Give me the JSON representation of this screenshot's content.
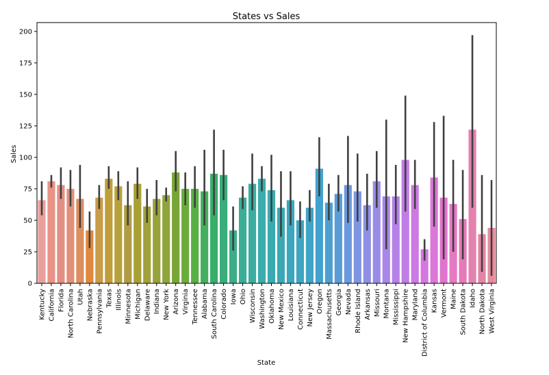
{
  "chart_data": {
    "type": "bar",
    "title": "States vs Sales",
    "xlabel": "State",
    "ylabel": "Sales",
    "ylim": [
      0,
      207
    ],
    "yticks": [
      0,
      25,
      50,
      75,
      100,
      125,
      150,
      175,
      200
    ],
    "grid": false,
    "categories": [
      "Kentucky",
      "California",
      "Florida",
      "North Carolina",
      "Utah",
      "Nebraska",
      "Pennsylvania",
      "Texas",
      "Illinois",
      "Minnesota",
      "Michigan",
      "Delaware",
      "Indiana",
      "New York",
      "Arizona",
      "Virginia",
      "Tennessee",
      "Alabama",
      "South Carolina",
      "Colorado",
      "Iowa",
      "Ohio",
      "Wisconsin",
      "Washington",
      "Oklahoma",
      "New Mexico",
      "Louisiana",
      "Connecticut",
      "New Jersey",
      "Oregon",
      "Massachusetts",
      "Georgia",
      "Nevada",
      "Rhode Island",
      "Arkansas",
      "Missouri",
      "Montana",
      "Mississippi",
      "New Hampshire",
      "Maryland",
      "District of Columbia",
      "Kansas",
      "Vermont",
      "Maine",
      "South Dakota",
      "Idaho",
      "North Dakota",
      "West Virginia"
    ],
    "values": [
      66,
      81,
      78,
      75,
      67,
      42,
      68,
      83,
      77,
      62,
      79,
      61,
      67,
      70,
      88,
      75,
      75,
      73,
      87,
      86,
      42,
      68,
      79,
      83,
      74,
      60,
      66,
      50,
      60,
      91,
      64,
      71,
      78,
      73,
      62,
      81,
      69,
      69,
      98,
      78,
      27,
      84,
      68,
      63,
      51,
      122,
      39,
      44
    ],
    "error_low": [
      54,
      76,
      67,
      61,
      44,
      28,
      59,
      75,
      66,
      46,
      67,
      48,
      54,
      65,
      73,
      62,
      60,
      46,
      54,
      66,
      26,
      59,
      58,
      73,
      49,
      37,
      46,
      36,
      49,
      69,
      50,
      57,
      48,
      49,
      42,
      60,
      27,
      47,
      57,
      59,
      18,
      45,
      19,
      25,
      19,
      60,
      9,
      6
    ],
    "error_high": [
      81,
      86,
      92,
      90,
      94,
      57,
      78,
      93,
      89,
      81,
      92,
      75,
      82,
      76,
      105,
      88,
      93,
      106,
      122,
      106,
      61,
      77,
      103,
      93,
      102,
      89,
      89,
      65,
      74,
      116,
      79,
      86,
      117,
      103,
      87,
      105,
      130,
      94,
      149,
      98,
      35,
      128,
      133,
      98,
      90,
      197,
      86,
      82
    ],
    "colors": [
      "#e8a09c",
      "#e99387",
      "#e38f85",
      "#e2907a",
      "#dd8e5e",
      "#e0883e",
      "#c99c4a",
      "#c09d3a",
      "#b6a13c",
      "#b09c43",
      "#a9a035",
      "#a1a23c",
      "#97a33a",
      "#8fa53b",
      "#78a535",
      "#6aac3c",
      "#58b045",
      "#44af5e",
      "#37af6b",
      "#39ae7a",
      "#3bae88",
      "#3aad97",
      "#3bada0",
      "#3aaeac",
      "#39abb0",
      "#3ba9b5",
      "#3ba6bd",
      "#3fa5c2",
      "#40a4c7",
      "#42a2cf",
      "#4c9fd0",
      "#5a9cd6",
      "#6a99dd",
      "#7e95e2",
      "#8f90e4",
      "#9a8ce5",
      "#a887e6",
      "#b482e6",
      "#c07de5",
      "#cb7ae3",
      "#d478e0",
      "#dc76d8",
      "#e074cd",
      "#e579c2",
      "#e57ab8",
      "#e482ae",
      "#e485a6",
      "#e68b9e"
    ]
  }
}
